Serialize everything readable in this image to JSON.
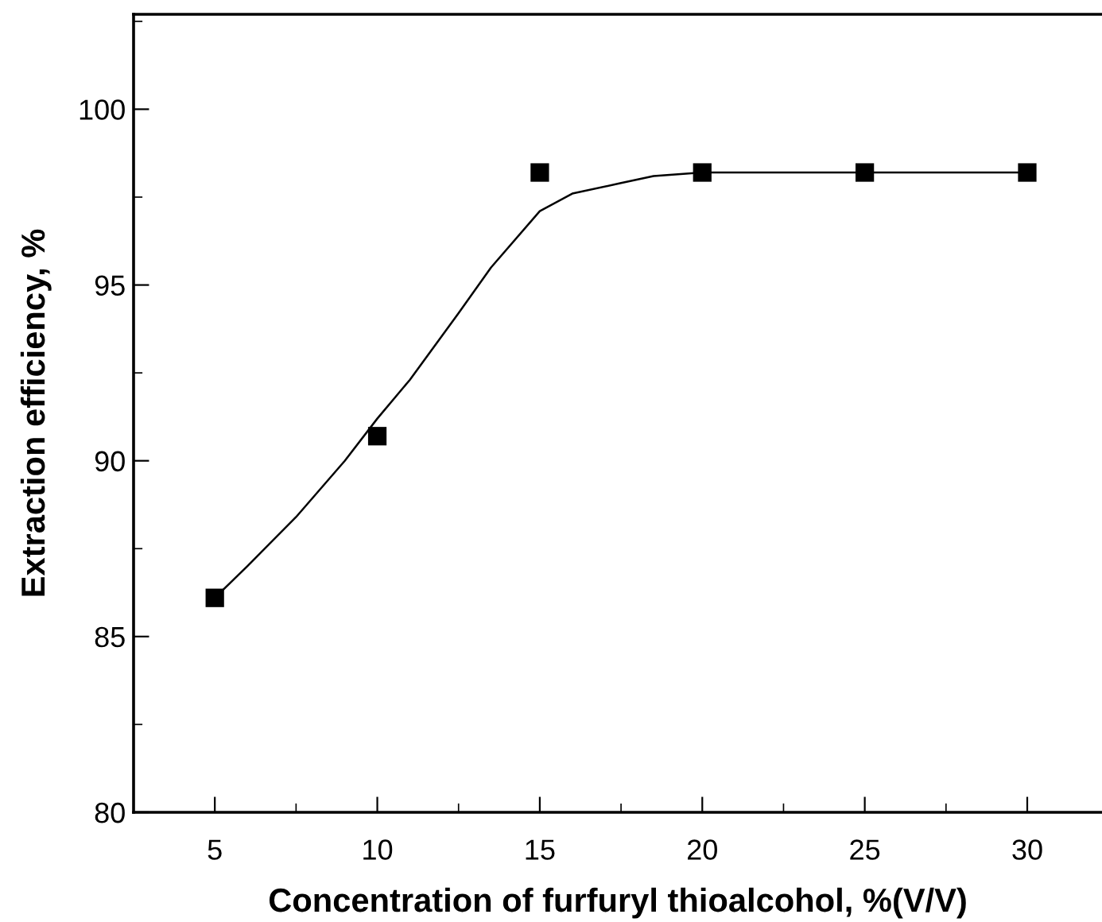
{
  "chart_data": {
    "type": "scatter",
    "xlabel": "Concentration of furfuryl thioalcohol, %(V/V)",
    "ylabel": "Extraction efficiency, %",
    "xlim": [
      2.5,
      32.3
    ],
    "ylim": [
      80,
      102.7
    ],
    "xticks": [
      5,
      10,
      15,
      20,
      25,
      30
    ],
    "yticks": [
      80,
      85,
      90,
      95,
      100
    ],
    "grid": false,
    "legend": false,
    "series": [
      {
        "marker": "square",
        "color": "#000000",
        "x": [
          5,
          10,
          15,
          20,
          25,
          30
        ],
        "values": [
          86.1,
          90.7,
          98.2,
          98.2,
          98.2,
          98.2
        ]
      },
      {
        "type": "line",
        "marker": "none",
        "line_style": "solid",
        "color": "#000000",
        "x": [
          5,
          6,
          7.5,
          9,
          10,
          11,
          12.5,
          13.5,
          15,
          16,
          17.5,
          18.5,
          20,
          22,
          25,
          30
        ],
        "values": [
          86.1,
          87.0,
          88.4,
          90.0,
          91.2,
          92.3,
          94.2,
          95.5,
          97.1,
          97.6,
          97.9,
          98.1,
          98.2,
          98.2,
          98.2,
          98.2
        ]
      }
    ]
  }
}
